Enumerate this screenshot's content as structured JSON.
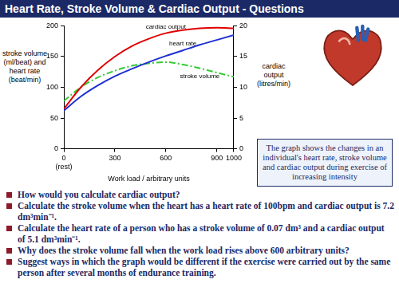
{
  "header": {
    "title": "Heart Rate, Stroke Volume & Cardiac Output - Questions"
  },
  "chart_data": {
    "type": "line",
    "x_label": "Work load / arbitrary units",
    "y_label": "stroke volume (ml/beat) and heart rate (beat/min)",
    "y2_label": "cardiac output (litres/min)",
    "grid": false,
    "xlim": [
      0,
      1000
    ],
    "xticks": [
      {
        "value": 0,
        "label": "0\n(rest)"
      },
      300,
      600,
      900,
      1000
    ],
    "ylim": [
      0,
      200
    ],
    "yticks": [
      0,
      50,
      100,
      150,
      200
    ],
    "y2lim": [
      0,
      20
    ],
    "y2ticks": [
      0,
      5,
      10,
      15,
      20
    ],
    "x": [
      0,
      100,
      200,
      300,
      400,
      500,
      600,
      700,
      800,
      900,
      1000
    ],
    "series": [
      {
        "name": "cardiac output",
        "color": "#e00000",
        "axis": "y2",
        "line_style": "solid",
        "values": [
          6.5,
          10,
          12.8,
          15,
          16.7,
          17.9,
          18.8,
          19.3,
          19.6,
          19.7,
          19.6
        ]
      },
      {
        "name": "heart rate",
        "color": "#1f2fd0",
        "line_style": "solid",
        "values": [
          62,
          85,
          103,
          118,
          130,
          141,
          151,
          160,
          169,
          177,
          185
        ]
      },
      {
        "name": "stroke volume",
        "color": "#33cc33",
        "line_style": "dashdot",
        "values": [
          78,
          100,
          116,
          127,
          135,
          139,
          141,
          137,
          131,
          124,
          117
        ]
      }
    ]
  },
  "caption": "The graph shows the changes in an individual's heart rate, stroke volume and cardiac output during exercise of increasing intensity",
  "questions": [
    "How would you calculate cardiac output?",
    "Calculate the stroke volume when the heart has a heart rate of 100bpm and cardiac output is 7.2 dm³min⁻¹.",
    "Calculate the heart rate of a person who has a stroke volume of 0.07 dm³ and a cardiac output of 5.1 dm³min⁻¹.",
    "Why does the stroke volume fall when the work load rises above 600 arbitrary units?",
    "Suggest ways in which the graph would be different if the exercise were carried out by the same person after several months of endurance training."
  ]
}
